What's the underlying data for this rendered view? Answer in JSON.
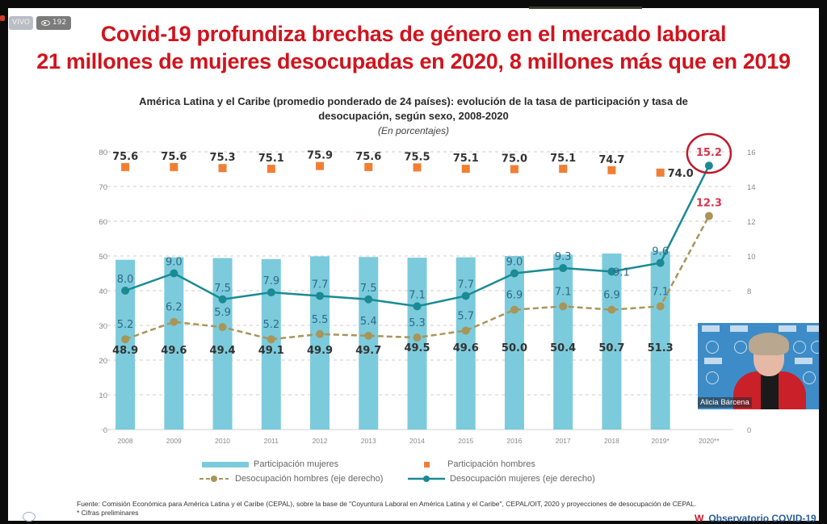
{
  "stream": {
    "live_label": "VIVO",
    "viewer_count": "192",
    "viewer_icon": "eye-icon"
  },
  "slide": {
    "title_line1": "Covid-19 profundiza brechas de género en el mercado laboral",
    "title_line2": "21 millones de mujeres desocupadas en 2020, 8 millones más que en 2019",
    "chart_title_line1": "América Latina y el Caribe (promedio ponderado de 24 países): evolución de la tasa de participación y tasa  de",
    "chart_title_line2": "desocupación, según sexo, 2008-2020",
    "chart_units": "(En porcentajes)",
    "footer_source": "Fuente: Comisión Económica para América Latina y el Caribe (CEPAL), sobre la base de \"Coyuntura Laboral en América Latina y el Caribe\", CEPAL/OIT, 2020 y proyecciones de desocupación de CEPAL.",
    "footer_note1": "* Cifras preliminares",
    "observatory_label": "Observatorio COVID-19",
    "colors": {
      "title_red": "#d0141e",
      "bar_blue": "#7ccbdc",
      "men_participation_orange": "#f07f35",
      "women_unemployment_teal": "#1a8a94",
      "men_unemployment_olive": "#a8955a",
      "highlight_red": "#d9344a"
    }
  },
  "video": {
    "speaker_name": "Alicia Bárcena"
  },
  "chart_data": {
    "type": "bar",
    "title": "América Latina y el Caribe (promedio ponderado de 24 países): evolución de la tasa de participación y tasa de desocupación, según sexo, 2008-2020",
    "subtitle": "(En porcentajes)",
    "categories": [
      "2008",
      "2009",
      "2010",
      "2011",
      "2012",
      "2013",
      "2014",
      "2015",
      "2016",
      "2017",
      "2018",
      "2019*",
      "2020**"
    ],
    "left_axis": {
      "ylim": [
        0,
        80
      ],
      "ticks": [
        "0",
        "10",
        "20",
        "30",
        "40",
        "50",
        "60",
        "70",
        "80"
      ]
    },
    "right_axis": {
      "ylim": [
        0,
        16
      ],
      "ticks": [
        "0",
        "8",
        "10",
        "12",
        "14",
        "16"
      ]
    },
    "grid": true,
    "legend_position": "bottom",
    "series": [
      {
        "name": "Participación mujeres",
        "type": "bar",
        "axis": "left",
        "values": [
          48.9,
          49.6,
          49.4,
          49.1,
          49.9,
          49.7,
          49.5,
          49.6,
          50.0,
          50.4,
          50.7,
          51.3,
          null
        ],
        "labels": [
          "48.9",
          "49.6",
          "49.4",
          "49.1",
          "49.9",
          "49.7",
          "49.5",
          "49.6",
          "50.0",
          "50.4",
          "50.7",
          "51.3",
          ""
        ]
      },
      {
        "name": "Participación hombres",
        "type": "marker",
        "axis": "left",
        "values": [
          75.6,
          75.6,
          75.3,
          75.1,
          75.9,
          75.6,
          75.5,
          75.1,
          75.0,
          75.1,
          74.7,
          74.0,
          null
        ],
        "labels": [
          "75.6",
          "75.6",
          "75.3",
          "75.1",
          "75.9",
          "75.6",
          "75.5",
          "75.1",
          "75.0",
          "75.1",
          "74.7",
          "74.0",
          ""
        ]
      },
      {
        "name": "Desocupación hombres (eje derecho)",
        "type": "dashed-line",
        "axis": "right",
        "values": [
          5.2,
          6.2,
          5.9,
          5.2,
          5.5,
          5.4,
          5.3,
          5.7,
          6.9,
          7.1,
          6.9,
          7.1,
          12.3
        ],
        "labels": [
          "5.2",
          "6.2",
          "5.9",
          "5.2",
          "5.5",
          "5.4",
          "5.3",
          "5.7",
          "6.9",
          "7.1",
          "6.9",
          "7.1",
          "12.3"
        ]
      },
      {
        "name": "Desocupación mujeres (eje derecho)",
        "type": "line",
        "axis": "right",
        "values": [
          8.0,
          9.0,
          7.5,
          7.9,
          7.7,
          7.5,
          7.1,
          7.7,
          9.0,
          9.3,
          9.1,
          9.6,
          15.2
        ],
        "labels": [
          "8.0",
          "9.0",
          "7.5",
          "7.9",
          "7.7",
          "7.5",
          "7.1",
          "7.7",
          "9.0",
          "9.3",
          "9.1",
          "9.6",
          "15.2"
        ]
      }
    ],
    "annotations": [
      {
        "text": "15.2",
        "note": "circled in red",
        "series": "Desocupación mujeres (eje derecho)",
        "category": "2020**"
      }
    ]
  }
}
